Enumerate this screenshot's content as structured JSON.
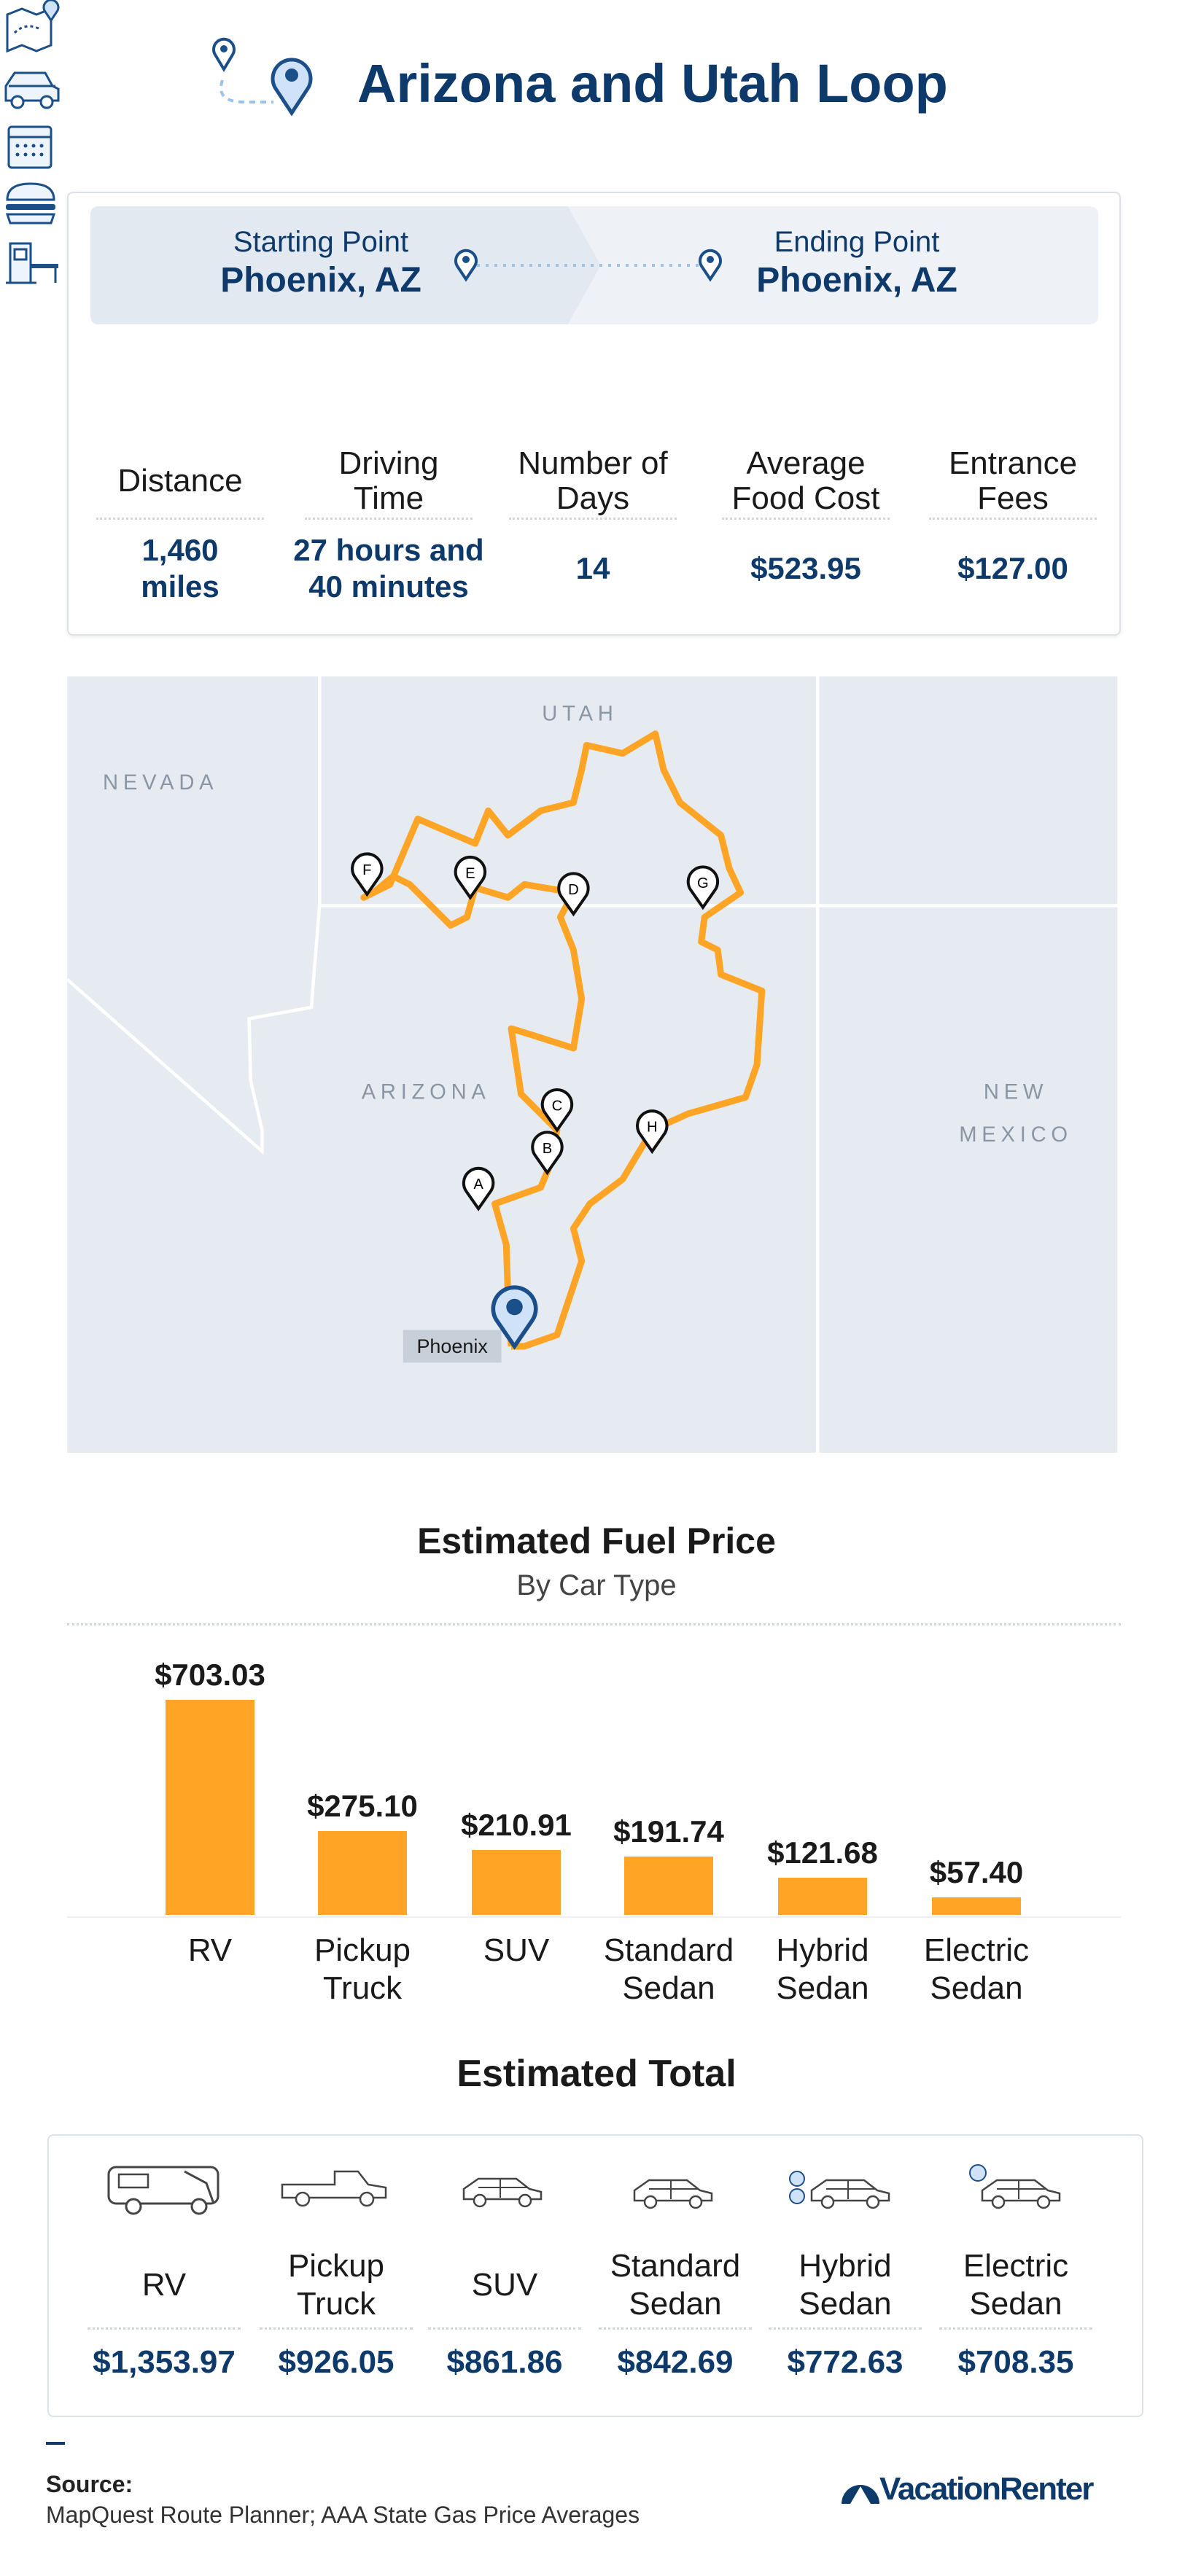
{
  "header": {
    "title": "Arizona and Utah Loop"
  },
  "trip": {
    "start": {
      "label": "Starting Point",
      "place": "Phoenix, AZ"
    },
    "end": {
      "label": "Ending Point",
      "place": "Phoenix, AZ"
    },
    "stats": [
      {
        "label": "Distance",
        "value": "1,460 miles"
      },
      {
        "label": "Driving Time",
        "value": "27 hours and 40 minutes"
      },
      {
        "label": "Number of Days",
        "value": "14"
      },
      {
        "label": "Average Food Cost",
        "value": "$523.95"
      },
      {
        "label": "Entrance Fees",
        "value": "$127.00"
      }
    ]
  },
  "map": {
    "states": [
      "UTAH",
      "NEVADA",
      "ARIZONA",
      "NEW MEXICO"
    ],
    "stops": [
      "A",
      "B",
      "C",
      "D",
      "E",
      "F",
      "G",
      "H"
    ],
    "city": "Phoenix"
  },
  "chart_data": {
    "type": "bar",
    "title": "Estimated Fuel Price",
    "subtitle": "By Car Type",
    "categories": [
      "RV",
      "Pickup Truck",
      "SUV",
      "Standard Sedan",
      "Hybrid Sedan",
      "Electric Sedan"
    ],
    "values": [
      703.03,
      275.1,
      210.91,
      191.74,
      121.68,
      57.4
    ],
    "value_labels": [
      "$703.03",
      "$275.10",
      "$210.91",
      "$191.74",
      "$121.68",
      "$57.40"
    ],
    "color": "#ffa424"
  },
  "totals": {
    "title": "Estimated Total",
    "items": [
      {
        "label": "RV",
        "value": "$1,353.97"
      },
      {
        "label": "Pickup Truck",
        "value": "$926.05"
      },
      {
        "label": "SUV",
        "value": "$861.86"
      },
      {
        "label": "Standard Sedan",
        "value": "$842.69"
      },
      {
        "label": "Hybrid Sedan",
        "value": "$772.63"
      },
      {
        "label": "Electric Sedan",
        "value": "$708.35"
      }
    ]
  },
  "footer": {
    "source_label": "Source:",
    "source": "MapQuest Route Planner; AAA State Gas Price Averages",
    "brand": "VacationRenter"
  }
}
